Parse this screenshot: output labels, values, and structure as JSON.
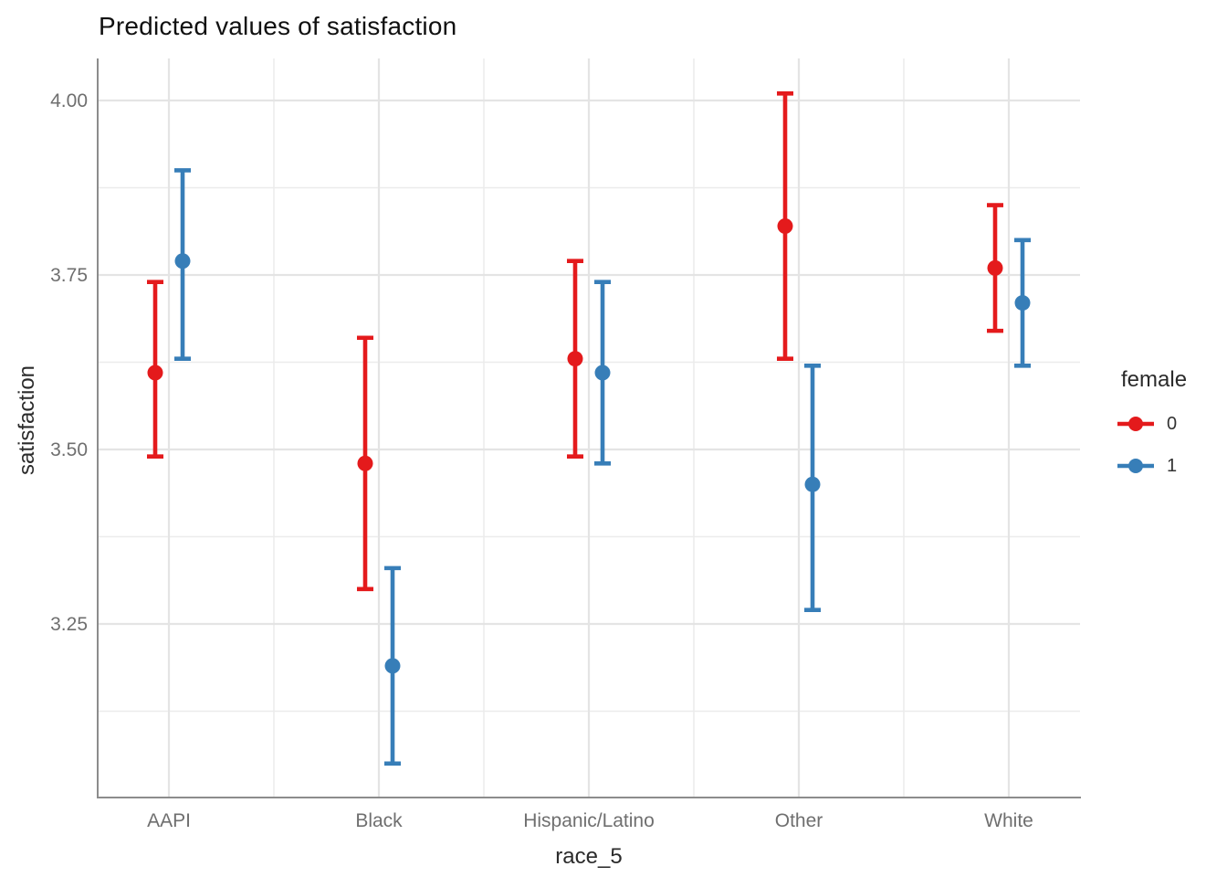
{
  "title": "Predicted values of satisfaction",
  "axes": {
    "y_label": "satisfaction",
    "x_label": "race_5"
  },
  "legend": {
    "title": "female",
    "entries": [
      {
        "label": "0",
        "color": "#E41A1C"
      },
      {
        "label": "1",
        "color": "#377EB8"
      }
    ]
  },
  "colors": {
    "red": "#E41A1C",
    "blue": "#377EB8",
    "grid_major": "#E4E4E4",
    "grid_minor": "#ECECEC",
    "axis_line": "#8C8C8C",
    "tick_text": "#6F6F6F",
    "title_text": "#101010"
  },
  "chart_data": {
    "type": "scatter",
    "subtype": "point-estimates with error bars (dodged pointrange)",
    "title": "Predicted values of satisfaction",
    "xlabel": "race_5",
    "ylabel": "satisfaction",
    "categories": [
      "AAPI",
      "Black",
      "Hispanic/Latino",
      "Other",
      "White"
    ],
    "y_ticks": [
      4.0,
      3.75,
      3.5,
      3.25
    ],
    "ylim": [
      3.0,
      4.06
    ],
    "grid": true,
    "legend_position": "right",
    "legend_title": "female",
    "series": [
      {
        "name": "0",
        "color": "#E41A1C",
        "values": [
          3.61,
          3.48,
          3.63,
          3.82,
          3.76
        ],
        "ci_low": [
          3.49,
          3.3,
          3.49,
          3.63,
          3.67
        ],
        "ci_high": [
          3.74,
          3.66,
          3.77,
          4.01,
          3.85
        ]
      },
      {
        "name": "1",
        "color": "#377EB8",
        "values": [
          3.77,
          3.19,
          3.61,
          3.45,
          3.71
        ],
        "ci_low": [
          3.63,
          3.05,
          3.48,
          3.27,
          3.62
        ],
        "ci_high": [
          3.9,
          3.33,
          3.74,
          3.62,
          3.8
        ]
      }
    ]
  }
}
